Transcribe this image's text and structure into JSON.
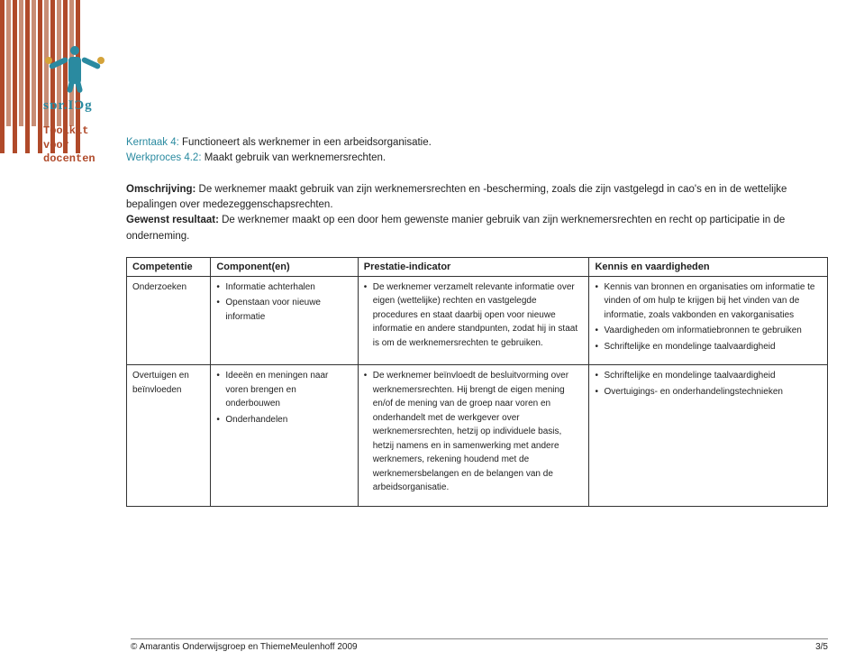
{
  "brand": "sɒr.IƆg",
  "toolkit_line1": "Toolkit voor",
  "toolkit_line2": "docenten",
  "intro": {
    "kerntaak_label": "Kerntaak 4:",
    "kerntaak_text": "Functioneert als werknemer in een arbeidsorganisatie.",
    "werkproces_label": "Werkproces 4.2:",
    "werkproces_text": "Maakt gebruik van werknemersrechten.",
    "omschrijving_label": "Omschrijving:",
    "omschrijving_text": "De werknemer maakt gebruik van zijn werknemersrechten en -bescherming, zoals die zijn vastgelegd in cao's en in de wettelijke bepalingen over medezeggenschapsrechten.",
    "gewenst_label": "Gewenst resultaat:",
    "gewenst_text": "De werknemer maakt op een door hem gewenste manier gebruik van zijn werknemersrechten en recht op participatie in de onderneming."
  },
  "table": {
    "headers": {
      "competentie": "Competentie",
      "componenten": "Component(en)",
      "prestatie": "Prestatie-indicator",
      "kennis": "Kennis en vaardigheden"
    },
    "rows": [
      {
        "competentie": "Onderzoeken",
        "componenten": [
          "Informatie achterhalen",
          "Openstaan voor nieuwe informatie"
        ],
        "prestatie": [
          "De werknemer verzamelt relevante informatie over eigen (wettelijke) rechten en vastgelegde procedures en staat daarbij open voor nieuwe informatie en andere standpunten, zodat hij in staat is om de werknemersrechten te gebruiken."
        ],
        "kennis": [
          "Kennis van bronnen en organisaties om informatie te vinden of om hulp te krijgen bij het vinden van de informatie, zoals vakbonden en vakorganisaties",
          "Vaardigheden om informatiebronnen te gebruiken",
          "Schriftelijke en mondelinge taalvaardigheid"
        ]
      },
      {
        "competentie": "Overtuigen en beïnvloeden",
        "componenten": [
          "Ideeën en meningen naar voren brengen en onderbouwen",
          "Onderhandelen"
        ],
        "prestatie": [
          "De werknemer beïnvloedt de besluitvorming over werknemersrechten. Hij brengt de eigen mening en/of de mening van de groep naar voren en onderhandelt met de werkgever over werknemersrechten, hetzij op individuele basis, hetzij namens en in samenwerking met andere werknemers, rekening houdend met de werknemersbelangen en de belangen van de arbeidsorganisatie."
        ],
        "kennis": [
          "Schriftelijke en mondelinge taalvaardigheid",
          "Overtuigings- en onderhandelingstechnieken"
        ]
      }
    ]
  },
  "footer": {
    "copyright": "© Amarantis Onderwijsgroep en ThiemeMeulenhoff 2009",
    "page": "3/5"
  },
  "colors": {
    "stripe_dark": "#b04a2a",
    "stripe_light": "#c88d75",
    "brand_blue": "#2a8aa0",
    "text": "#222222"
  }
}
